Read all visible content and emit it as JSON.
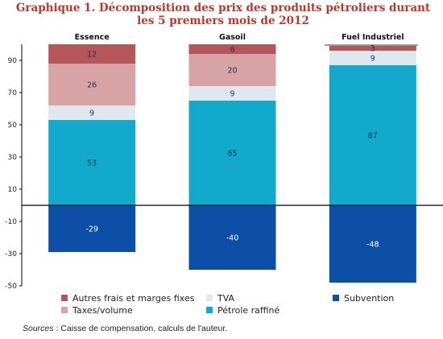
{
  "chart_data": {
    "type": "bar",
    "stacked": true,
    "title_line1": "Graphique 1. Décomposition des prix des produits pétroliers durant",
    "title_line2": "les 5 premiers mois de 2012",
    "categories": [
      "Essence",
      "Gasoil",
      "Fuel Industriel"
    ],
    "ylim": [
      -50,
      100
    ],
    "yticks": [
      90,
      70,
      50,
      30,
      10,
      -10,
      -30,
      -50
    ],
    "series": [
      {
        "name": "Pétrole raffiné",
        "color": "#12a9cc",
        "label_color": "#1f2f5a",
        "values": [
          53,
          65,
          87
        ]
      },
      {
        "name": "TVA",
        "color": "#dfe7ef",
        "label_color": "#1f2f5a",
        "values": [
          9,
          9,
          9
        ]
      },
      {
        "name": "Taxes/volume",
        "color": "#d8a3a4",
        "label_color": "#1f2f5a",
        "values": [
          26,
          20,
          null
        ]
      },
      {
        "name": "Autres frais et marges fixes",
        "color": "#b5565a",
        "label_color": "#1f2f5a",
        "values": [
          12,
          6,
          3
        ]
      },
      {
        "name": "Subvention",
        "color": "#0d4fa6",
        "label_color": "#ffffff",
        "values": [
          -29,
          -40,
          -48
        ]
      }
    ],
    "legend": [
      {
        "name": "Autres frais et marges fixes",
        "color": "#b5565a"
      },
      {
        "name": "Taxes/volume",
        "color": "#d8a3a4"
      },
      {
        "name": "TVA",
        "color": "#dfe7ef"
      },
      {
        "name": "Pétrole raffiné",
        "color": "#12a9cc"
      },
      {
        "name": "Subvention",
        "color": "#0d4fa6"
      }
    ],
    "legend_placement": "bottom",
    "grid": false
  },
  "source": {
    "label": "Sources",
    "text": " : Caisse de compensation, calculs de l'auteur."
  }
}
